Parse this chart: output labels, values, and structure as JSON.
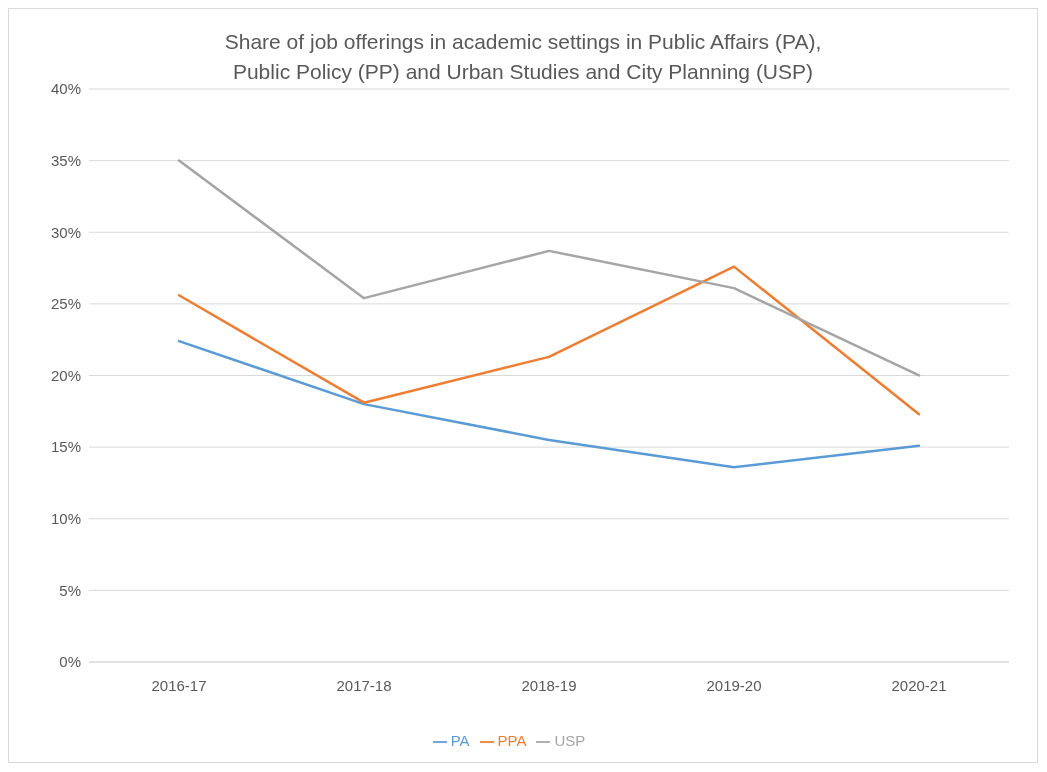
{
  "chart_data": {
    "type": "line",
    "title": "Share of job offerings in academic settings in Public Affairs (PA), Public Policy (PP) and Urban Studies and City Planning (USP)",
    "categories": [
      "2016-17",
      "2017-18",
      "2018-19",
      "2019-20",
      "2020-21"
    ],
    "series": [
      {
        "name": "PA",
        "color": "#5b9bd5",
        "values": [
          22.4,
          18.0,
          15.5,
          13.6,
          15.1
        ]
      },
      {
        "name": "PPA",
        "color": "#ed7d31",
        "values": [
          25.6,
          18.1,
          21.3,
          27.6,
          17.3
        ]
      },
      {
        "name": "USP",
        "color": "#a5a5a5",
        "values": [
          35.0,
          25.4,
          28.7,
          26.1,
          20.0
        ]
      }
    ],
    "ylim": [
      0,
      40
    ],
    "yticks": [
      {
        "value": 0,
        "label": "0%"
      },
      {
        "value": 5,
        "label": "5%"
      },
      {
        "value": 10,
        "label": "10%"
      },
      {
        "value": 15,
        "label": "15%"
      },
      {
        "value": 20,
        "label": "20%"
      },
      {
        "value": 25,
        "label": "25%"
      },
      {
        "value": 30,
        "label": "30%"
      },
      {
        "value": 35,
        "label": "35%"
      },
      {
        "value": 40,
        "label": "40%"
      }
    ],
    "grid": "y",
    "legend": "bottom",
    "marker": "none",
    "line_style": "solid"
  }
}
